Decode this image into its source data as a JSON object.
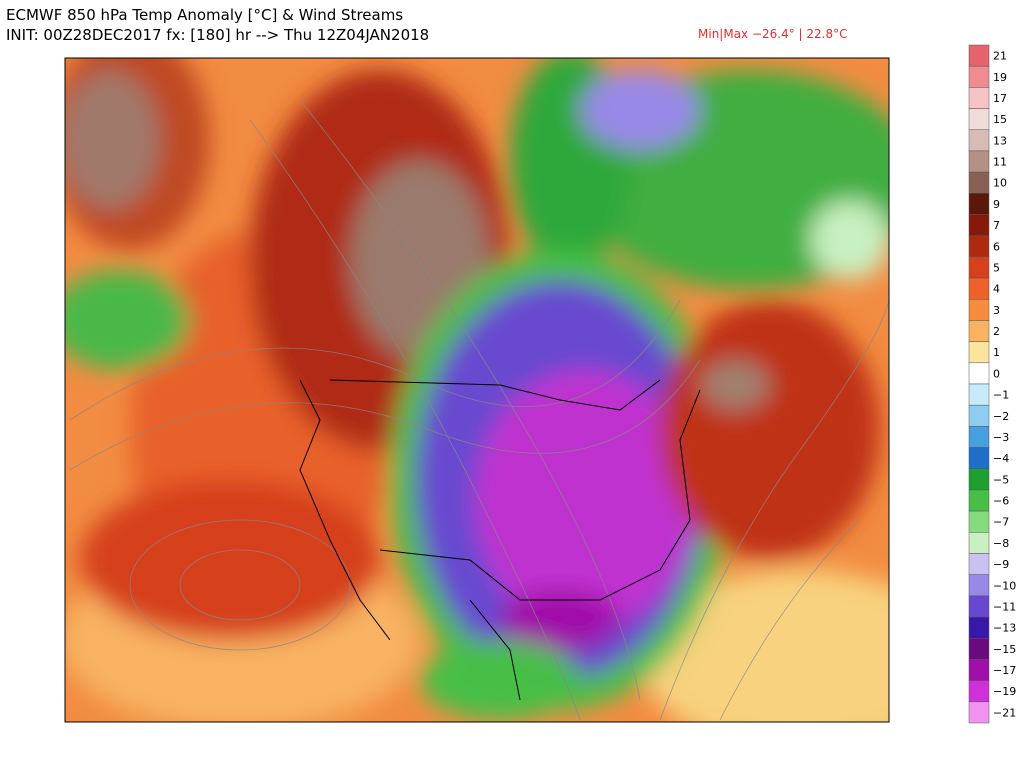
{
  "header": {
    "title": "ECMWF 850 hPa Temp Anomaly [°C] & Wind Streams",
    "init": "INIT: 00Z28DEC2017 fx: [180] hr --> Thu 12Z04JAN2018",
    "minmax": "Min|Max −26.4° | 22.8°C"
  },
  "colorbar": {
    "levels": [
      {
        "label": "21",
        "color": "#e5646c"
      },
      {
        "label": "19",
        "color": "#ee8c92"
      },
      {
        "label": "17",
        "color": "#f7c3c6"
      },
      {
        "label": "15",
        "color": "#efdcd8"
      },
      {
        "label": "13",
        "color": "#d6bcb4"
      },
      {
        "label": "11",
        "color": "#b49086"
      },
      {
        "label": "10",
        "color": "#886056"
      },
      {
        "label": "9",
        "color": "#5a180c"
      },
      {
        "label": "7",
        "color": "#861a0a"
      },
      {
        "label": "6",
        "color": "#ad2a10"
      },
      {
        "label": "5",
        "color": "#d6401a"
      },
      {
        "label": "4",
        "color": "#ef612a"
      },
      {
        "label": "3",
        "color": "#f58b3c"
      },
      {
        "label": "2",
        "color": "#f8b262"
      },
      {
        "label": "1",
        "color": "#fce49c"
      },
      {
        "label": "0",
        "color": "#ffffff"
      },
      {
        "label": "−1",
        "color": "#c6ebf8"
      },
      {
        "label": "−2",
        "color": "#8ecdf0"
      },
      {
        "label": "−3",
        "color": "#489fe0"
      },
      {
        "label": "−4",
        "color": "#1f6ec8"
      },
      {
        "label": "−5",
        "color": "#1f9f2f"
      },
      {
        "label": "−6",
        "color": "#47bf47"
      },
      {
        "label": "−7",
        "color": "#87db7f"
      },
      {
        "label": "−8",
        "color": "#c8f0c0"
      },
      {
        "label": "−9",
        "color": "#c9c1f1"
      },
      {
        "label": "−10",
        "color": "#9888e8"
      },
      {
        "label": "−11",
        "color": "#6848d0"
      },
      {
        "label": "−13",
        "color": "#3818a8"
      },
      {
        "label": "−15",
        "color": "#6a0a80"
      },
      {
        "label": "−17",
        "color": "#a010a8"
      },
      {
        "label": "−19",
        "color": "#d030d8"
      },
      {
        "label": "−21",
        "color": "#f092f0"
      }
    ]
  }
}
